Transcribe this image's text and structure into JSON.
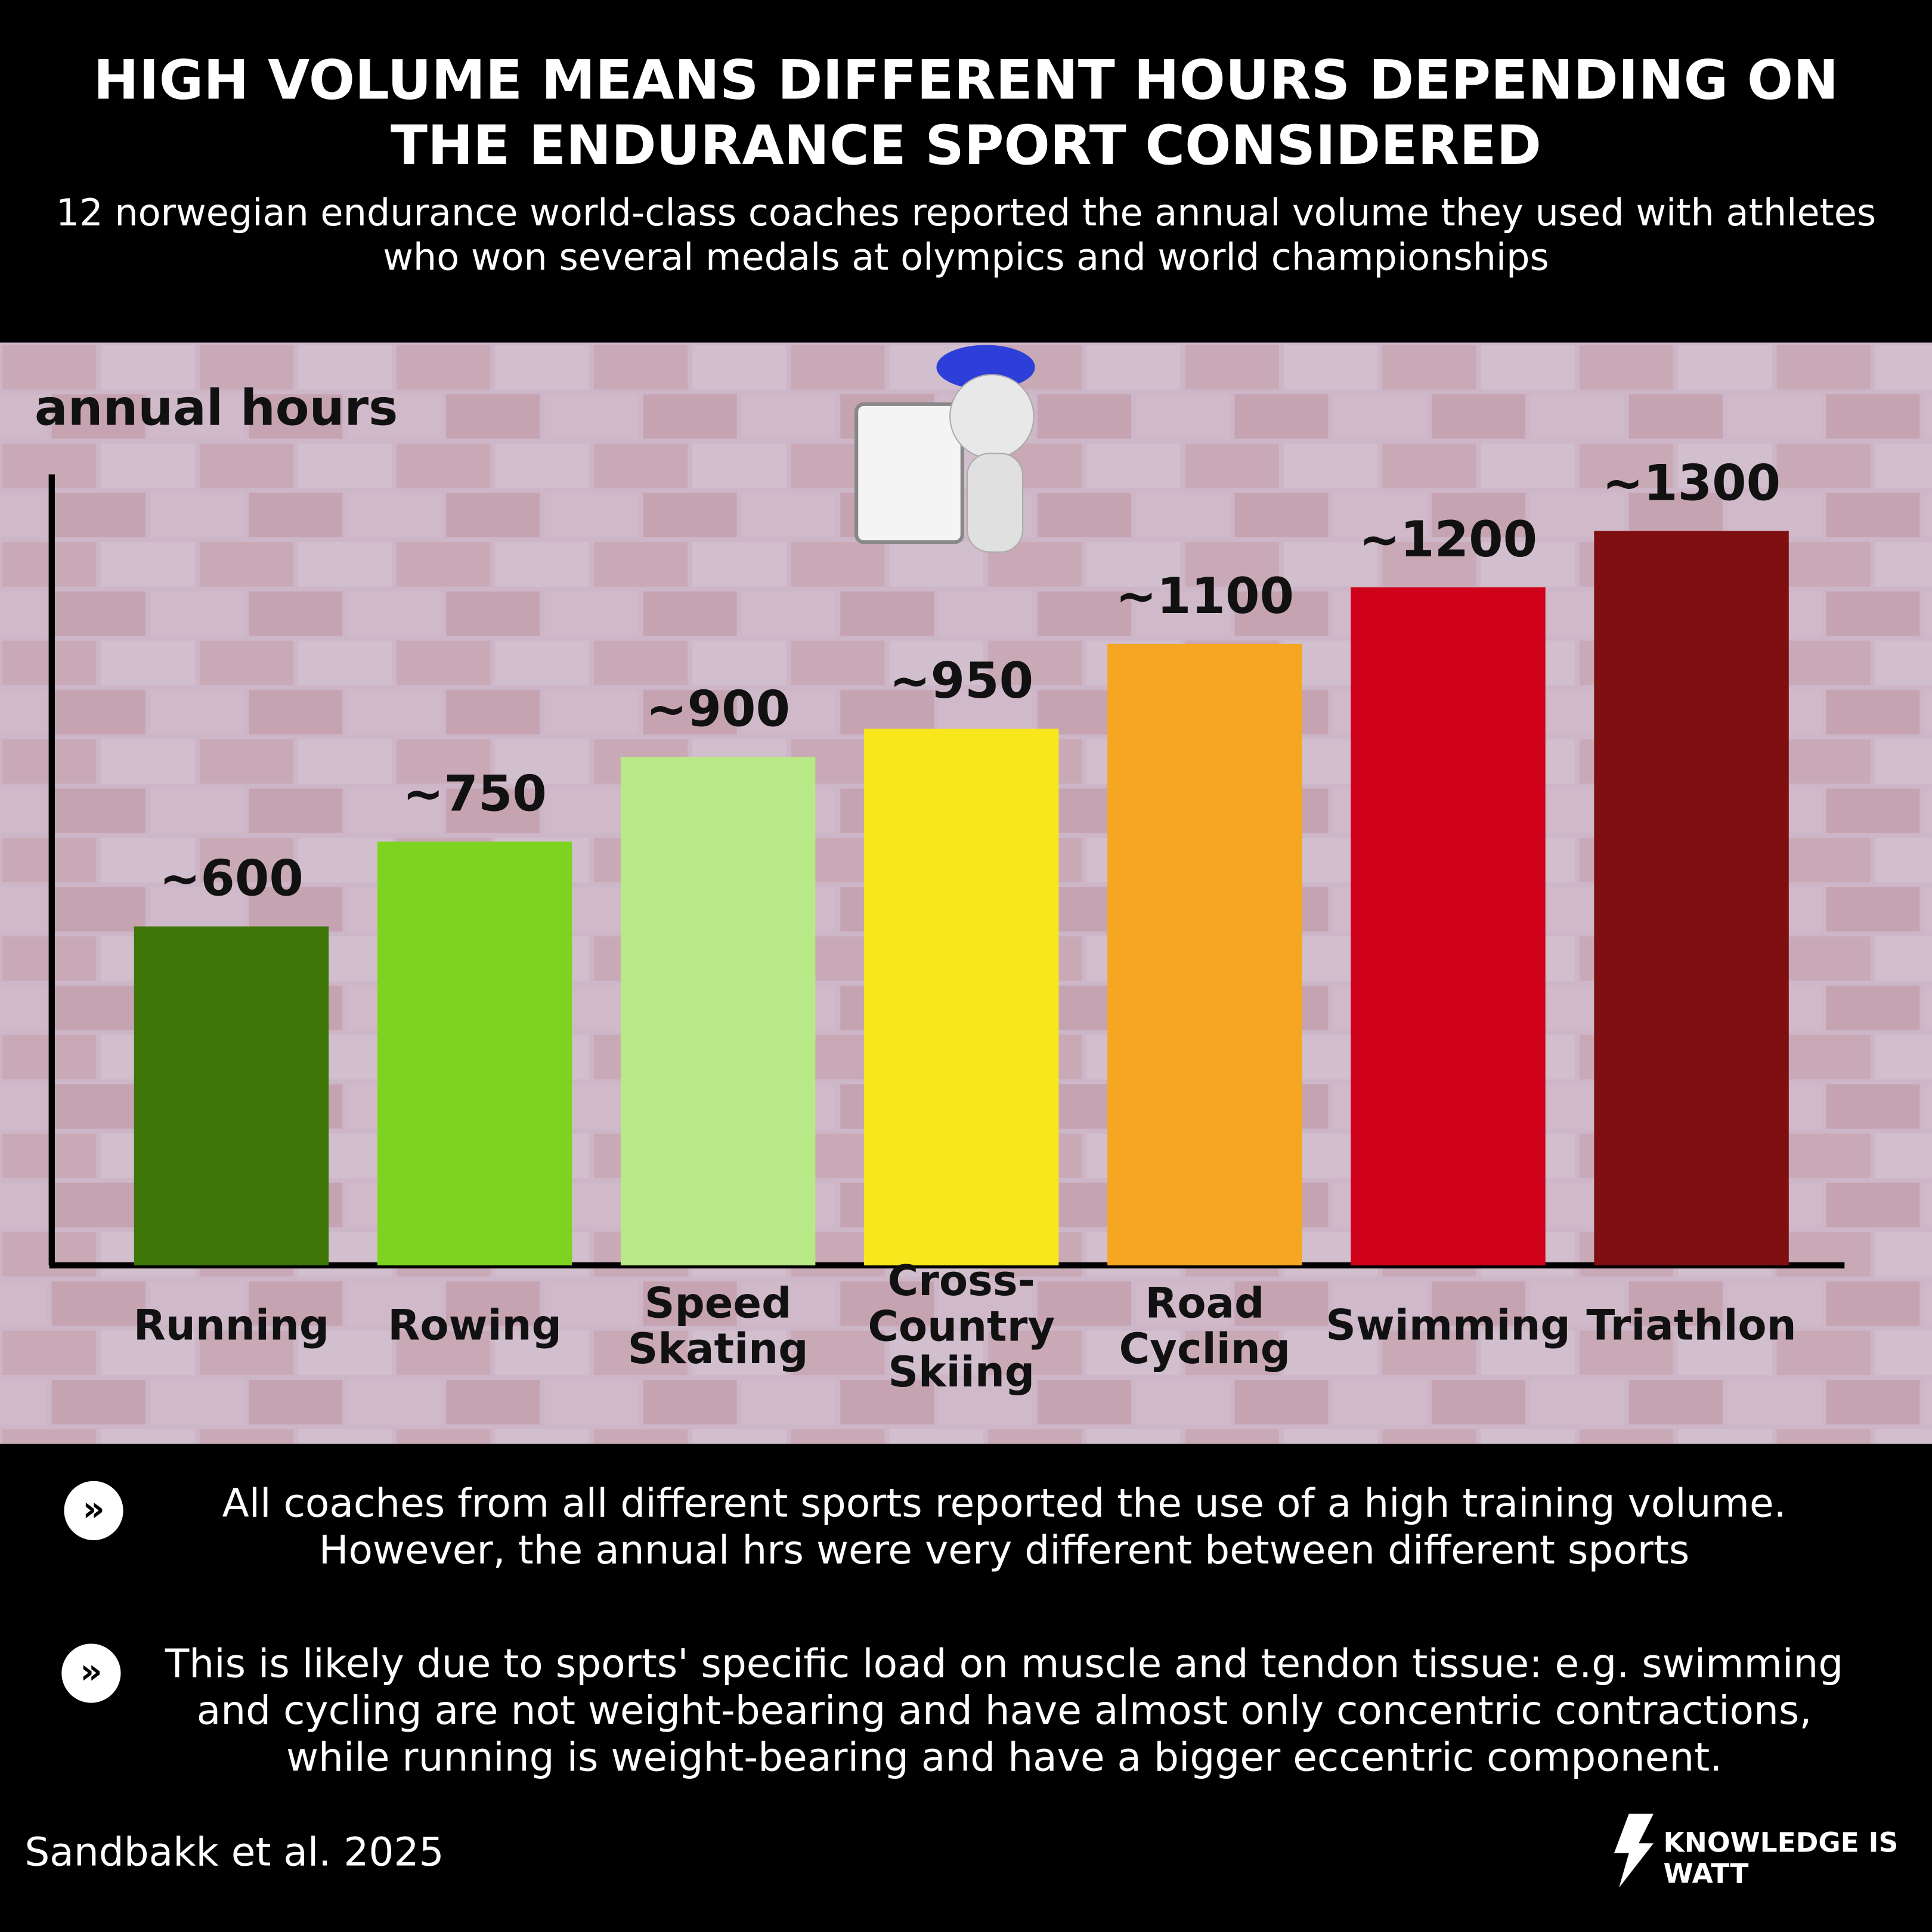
{
  "chart_data": {
    "type": "bar",
    "title": "HIGH VOLUME MEANS DIFFERENT HOURS DEPENDING ON THE ENDURANCE SPORT CONSIDERED",
    "subtitle": "12 norwegian endurance world-class coaches reported the annual volume they used with athletes who won several medals at olympics and world championships",
    "y_axis_label": "annual hours",
    "categories": [
      "Running",
      "Rowing",
      "Speed\nSkating",
      "Cross-\nCountry\nSkiing",
      "Road\nCycling",
      "Swimming",
      "Triathlon"
    ],
    "values": [
      600,
      750,
      900,
      950,
      1100,
      1200,
      1300
    ],
    "value_labels": [
      "~600",
      "~750",
      "~900",
      "~950",
      "~1100",
      "~1200",
      "~1300"
    ],
    "colors": [
      "#3e7708",
      "#7ed321",
      "#b8e986",
      "#f8e71c",
      "#f5a623",
      "#d0021b",
      "#7f0f10"
    ],
    "ylim": [
      0,
      1400
    ],
    "notes": [
      "All coaches from all different sports reported the use of a high training volume. However, the annual hrs were very different between different sports",
      "This is likely due to sports' specific load on muscle and tendon tissue: e.g. swimming and cycling are not weight-bearing and have almost only concentric contractions, while running is weight-bearing and have a bigger eccentric component."
    ],
    "source": "Sandbakk et al. 2025",
    "brand": "KNOWLEDGE IS WATT"
  }
}
